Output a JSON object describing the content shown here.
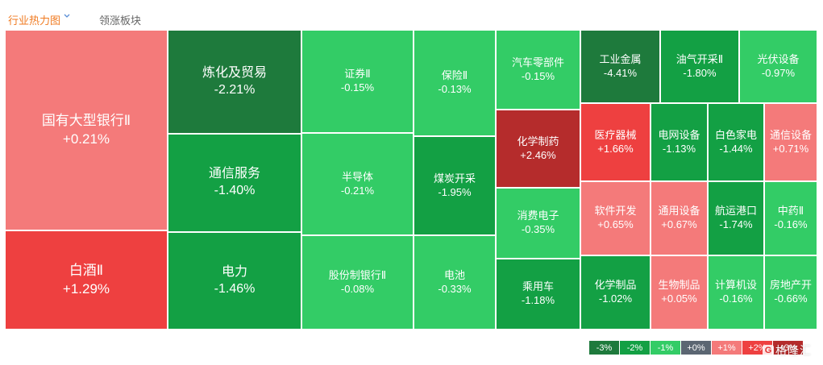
{
  "tabs": {
    "active": "行业热力图",
    "other": "领涨板块"
  },
  "colors": {
    "dark_green": "#1e7a3c",
    "green": "#13a044",
    "light_green": "#33cc66",
    "neutral": "#5b6672",
    "light_red": "#f47a7a",
    "red": "#ee4040",
    "dark_red": "#b52c2c"
  },
  "sectors": [
    {
      "name": "国有大型银行Ⅱ",
      "change": "+0.21%",
      "color": "#f47a7a"
    },
    {
      "name": "白酒Ⅱ",
      "change": "+1.29%",
      "color": "#ee4040"
    },
    {
      "name": "炼化及贸易",
      "change": "-2.21%",
      "color": "#1e7a3c"
    },
    {
      "name": "通信服务",
      "change": "-1.40%",
      "color": "#13a044"
    },
    {
      "name": "电力",
      "change": "-1.46%",
      "color": "#13a044"
    },
    {
      "name": "证券Ⅱ",
      "change": "-0.15%",
      "color": "#33cc66"
    },
    {
      "name": "半导体",
      "change": "-0.21%",
      "color": "#33cc66"
    },
    {
      "name": "股份制银行Ⅱ",
      "change": "-0.08%",
      "color": "#33cc66"
    },
    {
      "name": "保险Ⅱ",
      "change": "-0.13%",
      "color": "#33cc66"
    },
    {
      "name": "煤炭开采",
      "change": "-1.95%",
      "color": "#13a044"
    },
    {
      "name": "电池",
      "change": "-0.33%",
      "color": "#33cc66"
    },
    {
      "name": "汽车零部件",
      "change": "-0.15%",
      "color": "#33cc66"
    },
    {
      "name": "化学制药",
      "change": "+2.46%",
      "color": "#b52c2c"
    },
    {
      "name": "消费电子",
      "change": "-0.35%",
      "color": "#33cc66"
    },
    {
      "name": "乘用车",
      "change": "-1.18%",
      "color": "#13a044"
    },
    {
      "name": "工业金属",
      "change": "-4.41%",
      "color": "#1e7a3c"
    },
    {
      "name": "油气开采Ⅱ",
      "change": "-1.80%",
      "color": "#13a044"
    },
    {
      "name": "光伏设备",
      "change": "-0.97%",
      "color": "#33cc66"
    },
    {
      "name": "医疗器械",
      "change": "+1.66%",
      "color": "#ee4040"
    },
    {
      "name": "电网设备",
      "change": "-1.13%",
      "color": "#13a044"
    },
    {
      "name": "白色家电",
      "change": "-1.44%",
      "color": "#13a044"
    },
    {
      "name": "通信设备",
      "change": "+0.71%",
      "color": "#f47a7a"
    },
    {
      "name": "软件开发",
      "change": "+0.65%",
      "color": "#f47a7a"
    },
    {
      "name": "通用设备",
      "change": "+0.67%",
      "color": "#f47a7a"
    },
    {
      "name": "航运港口",
      "change": "-1.74%",
      "color": "#13a044"
    },
    {
      "name": "中药Ⅱ",
      "change": "-0.16%",
      "color": "#33cc66"
    },
    {
      "name": "化学制品",
      "change": "-1.02%",
      "color": "#13a044"
    },
    {
      "name": "生物制品",
      "change": "+0.05%",
      "color": "#f47a7a"
    },
    {
      "name": "计算机设",
      "change": "-0.16%",
      "color": "#33cc66"
    },
    {
      "name": "房地产开",
      "change": "-0.66%",
      "color": "#33cc66"
    }
  ],
  "legend": [
    {
      "label": "-3%",
      "color": "#1e7a3c"
    },
    {
      "label": "-2%",
      "color": "#13a044"
    },
    {
      "label": "-1%",
      "color": "#33cc66"
    },
    {
      "label": "+0%",
      "color": "#5b6672"
    },
    {
      "label": "+1%",
      "color": "#f47a7a"
    },
    {
      "label": "+2%",
      "color": "#ee4040"
    },
    {
      "label": "+3%",
      "color": "#b52c2c"
    }
  ],
  "watermark": {
    "logo": "G",
    "text": "格隆汇"
  }
}
